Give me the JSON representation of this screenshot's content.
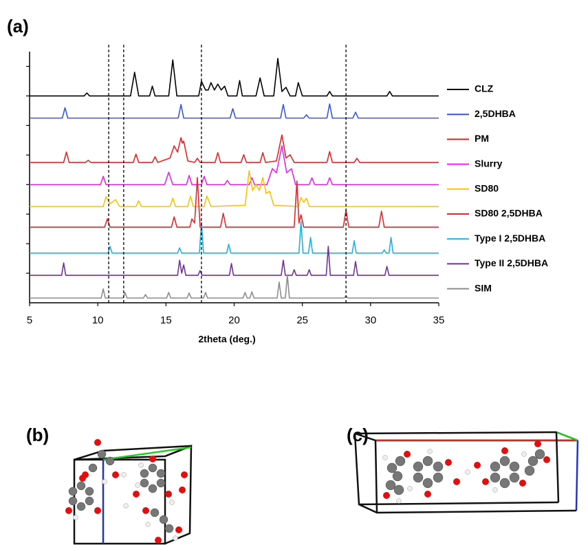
{
  "chart_data": {
    "type": "line",
    "annotations": [
      "(a)"
    ],
    "xlabel": "2theta (deg.)",
    "xlim": [
      5,
      35
    ],
    "xticks": [
      5,
      10,
      15,
      20,
      25,
      30,
      35
    ],
    "ylim": [
      0,
      8.5
    ],
    "yticks": [
      1,
      2,
      3,
      4,
      5,
      6,
      7,
      8
    ],
    "reference_lines": [
      10.8,
      11.9,
      17.6,
      28.2
    ],
    "legend": "right",
    "series": [
      {
        "name": "CLZ",
        "color": "#000000",
        "x": [
          5,
          9.0,
          9.2,
          9.4,
          12.4,
          12.7,
          13.0,
          13.8,
          14.0,
          14.2,
          15.2,
          15.5,
          15.8,
          17.4,
          17.6,
          17.9,
          18.1,
          18.3,
          18.55,
          18.8,
          19.05,
          19.3,
          19.55,
          20.2,
          20.4,
          20.6,
          21.6,
          21.9,
          22.2,
          22.9,
          23.2,
          23.5,
          23.8,
          24.1,
          24.5,
          24.7,
          25.0,
          26.8,
          27.0,
          27.2,
          31.2,
          31.4,
          31.6,
          35
        ],
        "values": [
          7.0,
          7.0,
          7.1,
          7.0,
          7.0,
          7.8,
          7.0,
          7.0,
          7.33,
          7.0,
          7.0,
          8.22,
          7.0,
          7.0,
          7.5,
          7.2,
          7.2,
          7.45,
          7.2,
          7.4,
          7.2,
          7.33,
          7.0,
          7.0,
          7.52,
          7.0,
          7.0,
          7.61,
          7.0,
          7.0,
          8.27,
          7.15,
          7.29,
          7.0,
          7.0,
          7.45,
          7.0,
          7.0,
          7.15,
          7.0,
          7.0,
          7.15,
          7.0,
          7.0
        ]
      },
      {
        "name": "2,5DHBA",
        "color": "#3355ee",
        "x": [
          5,
          7.4,
          7.6,
          7.8,
          15.9,
          16.1,
          16.3,
          19.7,
          19.9,
          20.1,
          23.4,
          23.6,
          23.8,
          25.1,
          25.3,
          25.5,
          26.8,
          27.0,
          27.2,
          28.7,
          28.9,
          29.1,
          35
        ],
        "values": [
          6.25,
          6.25,
          6.6,
          6.25,
          6.25,
          6.71,
          6.25,
          6.25,
          6.57,
          6.25,
          6.25,
          6.71,
          6.25,
          6.25,
          6.36,
          6.25,
          6.25,
          6.73,
          6.25,
          6.25,
          6.45,
          6.25,
          6.25
        ]
      },
      {
        "name": "PM",
        "color": "#ee2222",
        "x": [
          5,
          7.5,
          7.7,
          7.9,
          9.1,
          9.3,
          9.5,
          12.6,
          12.8,
          13.0,
          14.0,
          14.2,
          14.4,
          15.3,
          15.6,
          15.85,
          16.1,
          16.2,
          16.3,
          16.6,
          17.1,
          17.3,
          17.5,
          18.6,
          18.8,
          19.0,
          20.5,
          20.7,
          20.9,
          21.9,
          22.1,
          22.3,
          23.1,
          23.5,
          23.8,
          24.1,
          24.4,
          26.8,
          27.0,
          27.2,
          28.8,
          29.0,
          29.2,
          35
        ],
        "values": [
          4.75,
          4.75,
          5.1,
          4.75,
          4.75,
          4.82,
          4.75,
          4.75,
          5.03,
          4.75,
          4.75,
          4.94,
          4.75,
          4.9,
          5.31,
          5.1,
          5.59,
          5.4,
          5.47,
          4.8,
          4.75,
          4.89,
          4.75,
          4.75,
          5.08,
          4.75,
          4.75,
          5.01,
          4.75,
          4.75,
          5.08,
          4.75,
          4.8,
          5.68,
          4.9,
          5.01,
          4.75,
          4.75,
          5.12,
          4.75,
          4.75,
          4.89,
          4.75,
          4.75
        ]
      },
      {
        "name": "Slurry",
        "color": "#ee22ee",
        "x": [
          5,
          10.2,
          10.4,
          10.6,
          14.9,
          15.2,
          15.5,
          16.5,
          16.7,
          16.9,
          17.6,
          17.8,
          18.0,
          19.3,
          19.5,
          19.7,
          21.1,
          21.3,
          21.5,
          22.4,
          22.8,
          23.1,
          23.5,
          23.85,
          24.2,
          24.5,
          25.5,
          25.7,
          25.9,
          26.8,
          27.0,
          27.2,
          35
        ],
        "values": [
          4,
          4,
          4.28,
          4,
          4,
          4.42,
          4,
          4,
          4.31,
          4,
          4,
          4.28,
          4,
          4,
          4.14,
          4,
          4,
          4.23,
          4,
          4,
          4.54,
          4.4,
          5.31,
          4.4,
          4.54,
          4,
          4,
          4.23,
          4,
          4,
          4.23,
          4,
          4
        ]
      },
      {
        "name": "SD80",
        "color": "#ffc000",
        "x": [
          5,
          10.4,
          10.6,
          10.9,
          11.3,
          11.6,
          12.8,
          13.0,
          13.2,
          15.3,
          15.5,
          15.7,
          16.6,
          16.8,
          17.0,
          17.8,
          18.0,
          18.3,
          20.8,
          21.1,
          21.35,
          21.6,
          21.85,
          22.1,
          22.35,
          22.6,
          22.9,
          24.7,
          24.9,
          25.1,
          25.3,
          25.5,
          35
        ],
        "values": [
          3.26,
          3.26,
          3.59,
          3.35,
          3.49,
          3.26,
          3.26,
          3.45,
          3.26,
          3.26,
          3.54,
          3.26,
          3.26,
          3.61,
          3.26,
          3.26,
          3.61,
          3.26,
          3.3,
          4.47,
          3.8,
          4.0,
          3.8,
          4.24,
          3.7,
          3.77,
          3.3,
          3.26,
          3.56,
          3.4,
          3.54,
          3.26,
          3.26
        ]
      },
      {
        "name": "SD80 2,5DHBA",
        "color": "#e8262b",
        "x": [
          5,
          10.5,
          10.7,
          10.9,
          15.4,
          15.6,
          15.8,
          16.75,
          16.9,
          17.1,
          17.3,
          17.5,
          19.0,
          19.2,
          19.4,
          24.4,
          24.6,
          24.75,
          24.9,
          25.1,
          28.0,
          28.2,
          28.4,
          30.6,
          30.8,
          31.0,
          35
        ],
        "values": [
          2.56,
          2.56,
          2.84,
          2.56,
          2.56,
          2.91,
          2.56,
          2.56,
          2.84,
          2.7,
          4.24,
          2.56,
          2.56,
          3.03,
          2.56,
          2.56,
          4.12,
          2.7,
          2.98,
          2.56,
          2.56,
          3.14,
          2.56,
          2.56,
          3.1,
          2.56,
          2.56
        ]
      },
      {
        "name": "Type I 2,5DHBA",
        "color": "#1ab2e8",
        "x": [
          5,
          10.75,
          10.9,
          11.05,
          15.85,
          16.0,
          16.15,
          17.45,
          17.6,
          17.75,
          19.45,
          19.6,
          19.75,
          24.75,
          24.9,
          25.05,
          25.45,
          25.6,
          25.75,
          28.65,
          28.8,
          28.95,
          30.85,
          31.0,
          31.15,
          31.35,
          31.5,
          31.65,
          35
        ],
        "values": [
          1.68,
          1.68,
          1.91,
          1.68,
          1.68,
          1.86,
          1.68,
          1.68,
          2.72,
          1.68,
          1.68,
          1.98,
          1.68,
          1.68,
          2.75,
          1.68,
          1.68,
          2.21,
          1.68,
          1.68,
          2.1,
          1.68,
          1.68,
          1.79,
          1.68,
          1.68,
          2.21,
          1.68,
          1.68
        ]
      },
      {
        "name": "Type II 2,5DHBA",
        "color": "#7030a0",
        "x": [
          5,
          7.35,
          7.5,
          7.65,
          15.85,
          16.0,
          16.15,
          16.3,
          16.45,
          17.35,
          17.5,
          17.65,
          19.65,
          19.8,
          19.95,
          23.45,
          23.6,
          23.75,
          24.25,
          24.4,
          24.55,
          25.35,
          25.5,
          25.65,
          26.75,
          26.9,
          27.05,
          28.75,
          28.9,
          29.05,
          31.05,
          31.2,
          31.35,
          35
        ],
        "values": [
          0.93,
          0.93,
          1.35,
          0.93,
          0.93,
          1.44,
          1.0,
          1.28,
          0.93,
          0.93,
          1.09,
          0.93,
          0.93,
          1.33,
          0.93,
          0.93,
          1.44,
          0.93,
          0.93,
          1.12,
          0.93,
          0.93,
          1.12,
          0.93,
          0.93,
          1.91,
          0.93,
          0.93,
          1.4,
          0.93,
          0.93,
          1.23,
          0.93,
          0.93
        ]
      },
      {
        "name": "SIM",
        "color": "#8c8c8c",
        "x": [
          5,
          10.25,
          10.4,
          10.55,
          11.85,
          12.0,
          12.15,
          13.35,
          13.5,
          13.65,
          15.05,
          15.2,
          15.35,
          16.55,
          16.7,
          16.85,
          17.75,
          17.9,
          18.05,
          20.65,
          20.8,
          20.95,
          21.15,
          21.3,
          21.45,
          23.15,
          23.3,
          23.45,
          23.75,
          23.9,
          24.05,
          28.05,
          28.2,
          28.35,
          35
        ],
        "values": [
          0.16,
          0.16,
          0.47,
          0.16,
          0.16,
          0.35,
          0.16,
          0.16,
          0.28,
          0.16,
          0.16,
          0.35,
          0.16,
          0.16,
          0.33,
          0.16,
          0.16,
          0.35,
          0.16,
          0.16,
          0.35,
          0.16,
          0.16,
          0.37,
          0.16,
          0.16,
          0.7,
          0.16,
          0.16,
          0.93,
          0.16,
          0.16,
          0.23,
          0.16,
          0.16
        ]
      }
    ]
  },
  "panels": [
    {
      "label": "(b)"
    },
    {
      "label": "(c)"
    }
  ]
}
